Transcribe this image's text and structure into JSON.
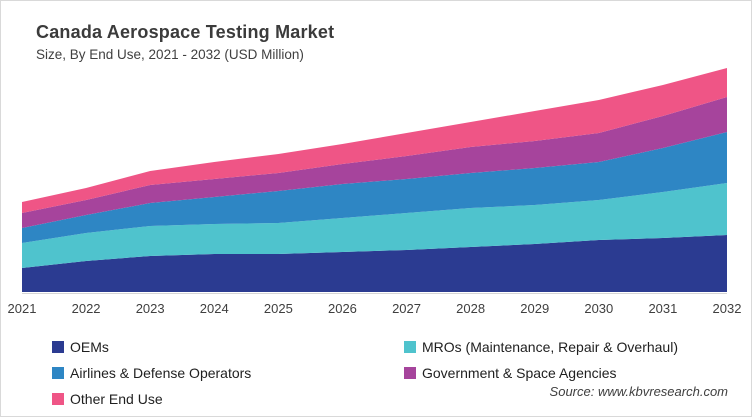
{
  "title": "Canada Aerospace Testing Market",
  "subtitle": "Size, By End Use, 2021 - 2032 (USD Million)",
  "source": "Source: www.kbvresearch.com",
  "chart_data": {
    "type": "area",
    "stacked": true,
    "title": "Canada Aerospace Testing Market",
    "subtitle": "Size, By End Use, 2021 - 2032 (USD Million)",
    "xlabel": "",
    "ylabel": "",
    "grid": false,
    "y_axis_shown": false,
    "value_units": "relative units (no y-axis scale shown in source image)",
    "legend_position": "bottom",
    "categories": [
      "2021",
      "2022",
      "2023",
      "2024",
      "2025",
      "2026",
      "2027",
      "2028",
      "2029",
      "2030",
      "2031",
      "2032"
    ],
    "series": [
      {
        "name": "OEMs",
        "color": "#2b3b91",
        "values": [
          24,
          31,
          36,
          38,
          38,
          40,
          42,
          45,
          48,
          52,
          54,
          57
        ]
      },
      {
        "name": "MROs (Maintenance, Repair & Overhaul)",
        "color": "#4fc3cd",
        "values": [
          25,
          28,
          30,
          30,
          31,
          34,
          37,
          39,
          39,
          40,
          46,
          52
        ]
      },
      {
        "name": "Airlines & Defense Operators",
        "color": "#2e86c4",
        "values": [
          15,
          18,
          23,
          27,
          32,
          34,
          34,
          35,
          37,
          38,
          44,
          51
        ]
      },
      {
        "name": "Government & Space Agencies",
        "color": "#a6449c",
        "values": [
          15,
          15,
          18,
          18,
          18,
          20,
          23,
          26,
          27,
          29,
          32,
          35
        ]
      },
      {
        "name": "Other End Use",
        "color": "#ef5586",
        "values": [
          11,
          12,
          14,
          17,
          19,
          20,
          23,
          25,
          30,
          33,
          31,
          29
        ]
      }
    ]
  },
  "legend": {
    "left_column": [
      {
        "label": "OEMs",
        "color": "#2b3b91"
      },
      {
        "label": "Airlines & Defense Operators",
        "color": "#2e86c4"
      },
      {
        "label": "Other End Use",
        "color": "#ef5586"
      }
    ],
    "right_column": [
      {
        "label": "MROs (Maintenance, Repair & Overhaul)",
        "color": "#4fc3cd"
      },
      {
        "label": "Government & Space Agencies",
        "color": "#a6449c"
      }
    ]
  }
}
